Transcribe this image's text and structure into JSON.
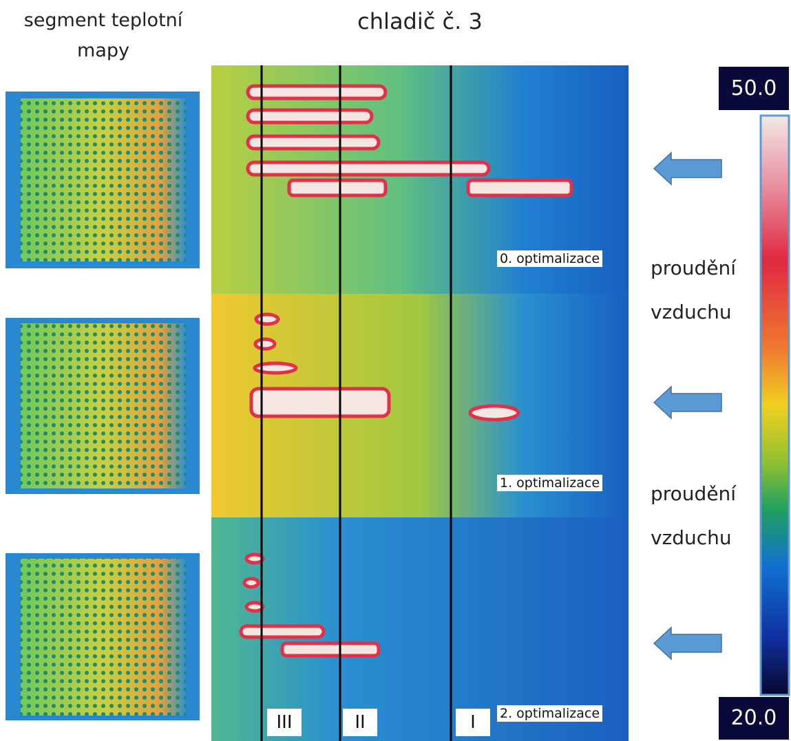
{
  "segment_title": "segment teplotní mapy",
  "title": "chladič č. 3",
  "panels": [
    "0. optimalizace",
    "1. optimalizace",
    "2. optimalizace"
  ],
  "zones": [
    "III",
    "II",
    "I"
  ],
  "airflow": [
    "proudění vzduchu",
    "proudění vzduchu"
  ],
  "scale": {
    "max": "50.0",
    "min": "20.0"
  }
}
